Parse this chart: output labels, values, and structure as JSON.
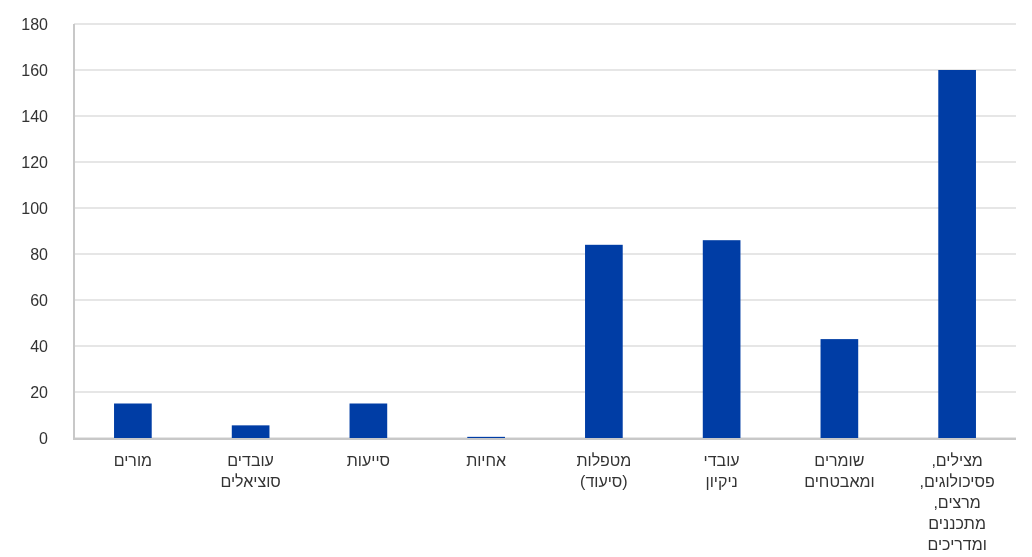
{
  "chart_data": {
    "type": "bar",
    "categories": [
      "מורים",
      "עובדים סוציאלים",
      "סייעות",
      "אחיות",
      "מטפלות (סיעוד)",
      "עובדי ניקיון",
      "שומרים ומאבטחים",
      "מצילים, פסיכולוגים, מרצים, מתכננים ומדריכים"
    ],
    "values": [
      15,
      5.5,
      15,
      0.5,
      84,
      86,
      43,
      160
    ],
    "color": "#003da5",
    "ylim": [
      0,
      180
    ],
    "yticks": [
      0,
      20,
      40,
      60,
      80,
      100,
      120,
      140,
      160,
      180
    ],
    "grid": "y"
  }
}
